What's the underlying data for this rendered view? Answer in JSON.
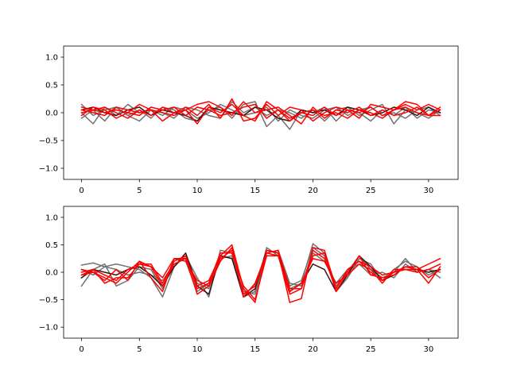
{
  "chart_data": [
    {
      "type": "line",
      "title": "",
      "xlabel": "",
      "ylabel": "",
      "xlim": [
        -1.55,
        32.55
      ],
      "ylim": [
        -1.2,
        1.2
      ],
      "xticks": [
        0,
        5,
        10,
        15,
        20,
        25,
        30
      ],
      "yticks": [
        -1.0,
        -0.5,
        0.0,
        0.5,
        1.0
      ],
      "grid": false,
      "x": [
        0,
        1,
        2,
        3,
        4,
        5,
        6,
        7,
        8,
        9,
        10,
        11,
        12,
        13,
        14,
        15,
        16,
        17,
        18,
        19,
        20,
        21,
        22,
        23,
        24,
        25,
        26,
        27,
        28,
        29,
        30,
        31
      ],
      "series": [
        {
          "color": "#707070",
          "values": [
            0.15,
            -0.05,
            0.05,
            0.1,
            -0.05,
            0.05,
            -0.1,
            0.1,
            0.05,
            -0.1,
            -0.15,
            0.05,
            0.1,
            -0.1,
            0.15,
            0.2,
            -0.25,
            -0.05,
            -0.3,
            0.05,
            0.0,
            0.1,
            -0.15,
            0.05,
            0.0,
            -0.15,
            0.05,
            -0.05,
            0.1,
            -0.1,
            0.05,
            0.0
          ]
        },
        {
          "color": "#707070",
          "values": [
            0.0,
            -0.2,
            0.1,
            -0.05,
            0.15,
            0.0,
            0.05,
            -0.05,
            0.1,
            0.05,
            -0.1,
            0.0,
            0.15,
            0.05,
            -0.05,
            0.0,
            0.1,
            -0.15,
            0.05,
            -0.05,
            -0.1,
            0.05,
            0.1,
            -0.05,
            0.05,
            0.1,
            -0.05,
            0.0,
            -0.1,
            0.05,
            0.1,
            -0.05
          ]
        },
        {
          "color": "#707070",
          "values": [
            -0.1,
            0.05,
            -0.15,
            0.1,
            -0.05,
            -0.15,
            0.05,
            0.0,
            -0.1,
            0.1,
            0.05,
            -0.05,
            -0.1,
            0.2,
            0.0,
            0.1,
            -0.05,
            0.05,
            0.0,
            -0.1,
            0.05,
            -0.15,
            0.05,
            0.1,
            -0.05,
            0.05,
            0.15,
            -0.2,
            0.05,
            0.0,
            -0.1,
            0.05
          ]
        },
        {
          "color": "#3a1010",
          "values": [
            0.05,
            0.1,
            0.0,
            -0.05,
            0.05,
            0.1,
            -0.05,
            0.05,
            0.0,
            -0.05,
            -0.15,
            0.1,
            0.05,
            0.0,
            -0.05,
            0.1,
            0.05,
            -0.1,
            -0.15,
            0.05,
            0.0,
            0.05,
            -0.05,
            0.1,
            0.05,
            -0.05,
            0.0,
            0.1,
            0.05,
            -0.05,
            0.1,
            0.0
          ]
        },
        {
          "color": "#ff0000",
          "values": [
            0.05,
            0.0,
            -0.05,
            0.1,
            0.05,
            0.0,
            0.05,
            -0.15,
            0.0,
            0.1,
            -0.05,
            0.15,
            -0.1,
            0.25,
            -0.15,
            -0.1,
            0.15,
            -0.05,
            0.1,
            0.05,
            -0.15,
            0.0,
            0.1,
            0.05,
            -0.1,
            0.15,
            0.1,
            0.05,
            0.2,
            0.15,
            -0.05,
            0.1
          ]
        },
        {
          "color": "#ff0000",
          "values": [
            -0.05,
            0.1,
            0.05,
            -0.1,
            0.0,
            0.15,
            0.05,
            0.0,
            -0.05,
            0.05,
            0.15,
            0.2,
            0.1,
            -0.05,
            0.2,
            0.0,
            0.05,
            0.1,
            -0.05,
            -0.2,
            0.1,
            -0.1,
            0.05,
            0.0,
            0.1,
            -0.05,
            0.05,
            -0.05,
            0.0,
            0.1,
            -0.05,
            0.05
          ]
        },
        {
          "color": "#ff0000",
          "values": [
            0.1,
            0.05,
            0.0,
            0.05,
            0.0,
            -0.05,
            0.1,
            0.05,
            0.1,
            -0.05,
            0.1,
            0.05,
            -0.05,
            0.0,
            0.1,
            0.15,
            -0.1,
            0.05,
            -0.15,
            0.0,
            0.05,
            -0.05,
            0.0,
            -0.1,
            0.05,
            0.0,
            -0.1,
            0.05,
            0.15,
            0.05,
            0.15,
            0.05
          ]
        },
        {
          "color": "#ff0000",
          "values": [
            0.0,
            0.05,
            0.1,
            0.0,
            -0.1,
            0.05,
            -0.05,
            0.1,
            0.0,
            0.05,
            -0.2,
            0.1,
            0.0,
            0.15,
            -0.05,
            -0.15,
            0.2,
            0.05,
            -0.1,
            0.0,
            -0.05,
            0.1,
            -0.05,
            0.05,
            0.0,
            0.1,
            -0.05,
            0.05,
            0.1,
            0.0,
            -0.05,
            -0.05
          ]
        }
      ]
    },
    {
      "type": "line",
      "title": "",
      "xlabel": "",
      "ylabel": "",
      "xlim": [
        -1.55,
        32.55
      ],
      "ylim": [
        -1.2,
        1.2
      ],
      "xticks": [
        0,
        5,
        10,
        15,
        20,
        25,
        30
      ],
      "yticks": [
        -1.0,
        -0.5,
        0.0,
        0.5,
        1.0
      ],
      "grid": false,
      "x": [
        0,
        1,
        2,
        3,
        4,
        5,
        6,
        7,
        8,
        9,
        10,
        11,
        12,
        13,
        14,
        15,
        16,
        17,
        18,
        19,
        20,
        21,
        22,
        23,
        24,
        25,
        26,
        27,
        28,
        29,
        30,
        31
      ],
      "series": [
        {
          "color": "#707070",
          "values": [
            0.13,
            0.17,
            0.1,
            0.15,
            0.1,
            0.05,
            -0.1,
            -0.45,
            0.1,
            0.3,
            -0.1,
            -0.45,
            0.4,
            0.35,
            -0.45,
            -0.35,
            0.45,
            0.3,
            -0.3,
            -0.2,
            0.52,
            0.35,
            -0.25,
            0.0,
            0.3,
            0.05,
            -0.1,
            0.0,
            0.25,
            0.0,
            0.05,
            0.0
          ]
        },
        {
          "color": "#707070",
          "values": [
            -0.25,
            0.05,
            0.15,
            -0.25,
            -0.15,
            0.1,
            0.05,
            -0.3,
            0.25,
            0.2,
            -0.35,
            -0.2,
            0.25,
            0.3,
            -0.4,
            -0.25,
            0.4,
            0.35,
            -0.25,
            -0.15,
            0.45,
            0.3,
            -0.35,
            -0.1,
            0.25,
            0.15,
            -0.15,
            0.05,
            0.2,
            0.1,
            -0.05,
            0.05
          ]
        },
        {
          "color": "#707070",
          "values": [
            0.05,
            -0.05,
            0.1,
            0.05,
            -0.05,
            0.0,
            -0.05,
            -0.15,
            0.15,
            0.25,
            -0.2,
            -0.3,
            0.3,
            0.25,
            -0.35,
            -0.4,
            0.35,
            0.4,
            -0.2,
            -0.25,
            0.35,
            0.2,
            -0.2,
            0.05,
            0.15,
            -0.05,
            0.0,
            -0.1,
            0.15,
            0.0,
            0.05,
            -0.1
          ]
        },
        {
          "color": "#3a1010",
          "values": [
            -0.1,
            0.05,
            0.0,
            -0.05,
            0.05,
            0.1,
            -0.05,
            -0.25,
            0.1,
            0.35,
            -0.25,
            -0.4,
            0.3,
            0.25,
            -0.45,
            -0.3,
            0.4,
            0.35,
            -0.35,
            -0.2,
            0.15,
            0.05,
            -0.35,
            -0.05,
            0.3,
            0.1,
            -0.15,
            -0.05,
            0.1,
            0.05,
            0.0,
            0.05
          ]
        },
        {
          "color": "#ff0000",
          "values": [
            -0.05,
            0.0,
            -0.15,
            0.05,
            -0.15,
            0.2,
            -0.1,
            -0.35,
            0.25,
            0.25,
            -0.25,
            -0.15,
            0.3,
            0.5,
            -0.3,
            -0.55,
            0.4,
            0.35,
            -0.55,
            -0.48,
            0.45,
            0.4,
            -0.3,
            0.05,
            0.2,
            0.0,
            -0.15,
            0.0,
            0.05,
            0.05,
            0.15,
            0.25
          ]
        },
        {
          "color": "#ff0000",
          "values": [
            0.0,
            0.05,
            -0.05,
            -0.15,
            0.05,
            0.15,
            0.15,
            -0.2,
            0.2,
            0.3,
            -0.3,
            -0.2,
            0.35,
            0.35,
            -0.25,
            -0.5,
            0.3,
            0.3,
            -0.4,
            -0.3,
            0.3,
            0.35,
            -0.35,
            0.0,
            0.3,
            -0.05,
            -0.1,
            -0.05,
            0.1,
            0.05,
            -0.2,
            0.1
          ]
        },
        {
          "color": "#ff0000",
          "values": [
            0.05,
            0.0,
            -0.1,
            -0.2,
            0.0,
            0.2,
            0.1,
            -0.1,
            0.25,
            0.2,
            -0.15,
            -0.25,
            0.25,
            0.4,
            -0.4,
            -0.25,
            0.35,
            0.3,
            -0.35,
            -0.2,
            0.25,
            0.2,
            -0.2,
            -0.05,
            0.15,
            0.05,
            -0.2,
            0.05,
            0.05,
            0.0,
            0.05,
            0.15
          ]
        },
        {
          "color": "#ff0000",
          "values": [
            -0.05,
            0.05,
            -0.2,
            -0.1,
            -0.1,
            0.15,
            0.1,
            -0.25,
            0.15,
            0.25,
            -0.4,
            -0.25,
            0.2,
            0.45,
            -0.45,
            -0.2,
            0.35,
            0.4,
            -0.3,
            -0.3,
            0.4,
            0.25,
            -0.3,
            0.05,
            0.2,
            0.1,
            -0.05,
            0.0,
            0.1,
            0.1,
            -0.1,
            0.05
          ]
        }
      ]
    }
  ]
}
